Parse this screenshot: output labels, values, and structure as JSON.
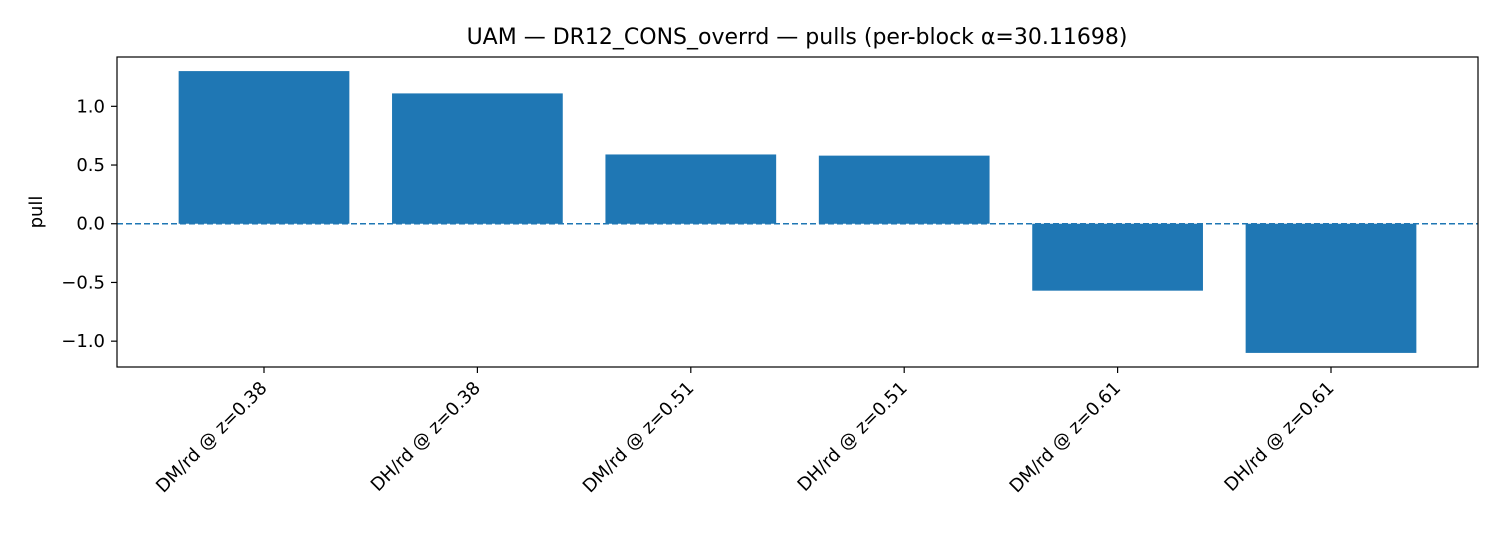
{
  "chart_data": {
    "type": "bar",
    "title": "UAM — DR12_CONS_overrd — pulls (per-block α=30.11698)",
    "xlabel": "",
    "ylabel": "pull",
    "categories": [
      "DM/rd @ z=0.38",
      "DH/rd @ z=0.38",
      "DM/rd @ z=0.51",
      "DH/rd @ z=0.51",
      "DM/rd @ z=0.61",
      "DH/rd @ z=0.61"
    ],
    "values": [
      1.3,
      1.11,
      0.59,
      0.58,
      -0.57,
      -1.1
    ],
    "ylim": [
      -1.22,
      1.42
    ],
    "yticks": [
      -1.0,
      -0.5,
      0.0,
      0.5,
      1.0
    ],
    "ytick_labels": [
      "−1.0",
      "−0.5",
      "0.0",
      "0.5",
      "1.0"
    ],
    "zero_line": "dashed",
    "grid": false,
    "colors": {
      "bar": "#1f77b4",
      "zero_line": "#1f77b4",
      "axis": "#000000"
    }
  }
}
